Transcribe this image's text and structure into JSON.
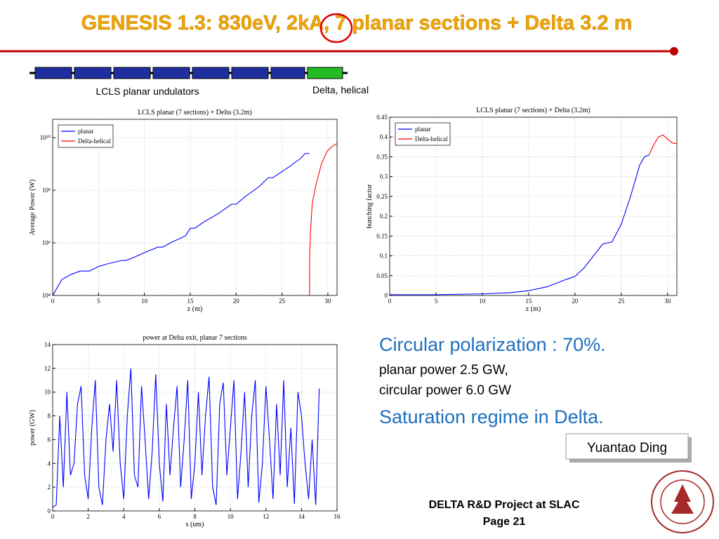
{
  "slide": {
    "title": "GENESIS 1.3: 830eV, 2kA, 7 planar sections + Delta 3.2 m",
    "undulator_label": "LCLS planar undulators",
    "delta_label": "Delta, helical",
    "bullets": [
      "Circular polarization : 70%.",
      "planar power 2.5 GW,",
      "circular power 6.0 GW",
      "Saturation regime in Delta."
    ],
    "author": "Yuantao Ding",
    "footer": "DELTA R&D Project at SLAC",
    "page": "Page 21"
  },
  "chart_data": [
    {
      "type": "line",
      "title": "LCLS planar (7 sections) + Delta (3.2m)",
      "xlabel": "z (m)",
      "ylabel": "Average Power (W)",
      "log_y": true,
      "grid": true,
      "legend": "upper left",
      "xlim": [
        0,
        31
      ],
      "xticks": [
        0,
        5,
        10,
        15,
        20,
        25,
        30
      ],
      "ylim": [
        10000,
        50000000000
      ],
      "yticks": [
        {
          "value": 10000,
          "label": "10⁴"
        },
        {
          "value": 1000000,
          "label": "10⁶"
        },
        {
          "value": 100000000,
          "label": "10⁸"
        },
        {
          "value": 10000000000,
          "label": "10¹⁰"
        }
      ],
      "series": [
        {
          "name": "planar",
          "color": "#0000ff",
          "x": [
            0,
            0.5,
            1,
            2,
            3,
            4,
            5,
            6,
            7.5,
            8,
            9,
            10,
            11.5,
            12,
            13,
            14.5,
            15,
            15.5,
            16.5,
            18,
            19.5,
            20,
            21,
            22.5,
            23.5,
            24,
            25.5,
            27,
            27.5,
            28
          ],
          "values": [
            10000,
            20000,
            40000,
            63000,
            85000,
            85000,
            126000,
            160000,
            214000,
            214000,
            295000,
            427000,
            692000,
            692000,
            1070000,
            1860000,
            3600000,
            3600000,
            6300000,
            12600000,
            29500000,
            29500000,
            58000000,
            138000000,
            300000000,
            300000000,
            670000000,
            1600000000,
            2500000000,
            2500000000
          ]
        },
        {
          "name": "Delta-helical",
          "color": "#ff0000",
          "x": [
            28,
            28.02,
            28.1,
            28.3,
            28.7,
            29.3,
            29.9,
            30.5,
            31
          ],
          "values": [
            10000,
            300000,
            2500000,
            32000000,
            160000000,
            1000000000,
            3000000000,
            4800000000,
            6000000000
          ]
        }
      ]
    },
    {
      "type": "line",
      "title": "LCLS planar (7 sections) + Delta (3.2m)",
      "xlabel": "z (m)",
      "ylabel": "bunching factor",
      "grid": true,
      "legend": "upper left",
      "xlim": [
        0,
        31
      ],
      "xticks": [
        0,
        5,
        10,
        15,
        20,
        25,
        30
      ],
      "ylim": [
        0,
        0.45
      ],
      "yticks": [
        0,
        0.05,
        0.1,
        0.15,
        0.2,
        0.25,
        0.3,
        0.35,
        0.4,
        0.45
      ],
      "series": [
        {
          "name": "planar",
          "color": "#0000ff",
          "x": [
            0,
            5,
            10,
            13,
            15,
            17,
            19,
            20,
            21,
            22,
            23,
            24,
            25,
            26,
            27,
            27.5,
            28
          ],
          "values": [
            0.002,
            0.002,
            0.004,
            0.007,
            0.012,
            0.022,
            0.04,
            0.048,
            0.07,
            0.1,
            0.13,
            0.135,
            0.18,
            0.25,
            0.33,
            0.35,
            0.355
          ]
        },
        {
          "name": "Delta-helical",
          "color": "#ff0000",
          "x": [
            28,
            28.5,
            29,
            29.5,
            30,
            30.5,
            31
          ],
          "values": [
            0.355,
            0.38,
            0.4,
            0.405,
            0.395,
            0.385,
            0.383
          ]
        }
      ]
    },
    {
      "type": "line",
      "title": "power at Delta exit, planar 7 sections",
      "xlabel": "s (um)",
      "ylabel": "power (GW)",
      "grid": true,
      "xlim": [
        0,
        16
      ],
      "xticks": [
        0,
        2,
        4,
        6,
        8,
        10,
        12,
        14,
        16
      ],
      "ylim": [
        0,
        14
      ],
      "yticks": [
        0,
        2,
        4,
        6,
        8,
        10,
        12,
        14
      ],
      "series": [
        {
          "color": "#0000ff",
          "x": [
            0,
            0.2,
            0.4,
            0.6,
            0.8,
            1,
            1.2,
            1.4,
            1.6,
            1.8,
            2,
            2.2,
            2.4,
            2.6,
            2.8,
            3,
            3.2,
            3.4,
            3.6,
            3.8,
            4,
            4.2,
            4.4,
            4.6,
            4.8,
            5,
            5.2,
            5.4,
            5.6,
            5.8,
            6,
            6.2,
            6.4,
            6.6,
            6.8,
            7,
            7.2,
            7.4,
            7.6,
            7.8,
            8,
            8.2,
            8.4,
            8.6,
            8.8,
            9,
            9.2,
            9.4,
            9.6,
            9.8,
            10,
            10.2,
            10.4,
            10.6,
            10.8,
            11,
            11.2,
            11.4,
            11.6,
            11.8,
            12,
            12.2,
            12.4,
            12.6,
            12.8,
            13,
            13.2,
            13.4,
            13.6,
            13.8,
            14,
            14.2,
            14.4,
            14.6,
            14.8,
            15
          ],
          "values": [
            0.3,
            0.5,
            8,
            2,
            10,
            3,
            4,
            9,
            10.5,
            3,
            1,
            7,
            11,
            2,
            0.5,
            6,
            9,
            5,
            11,
            4,
            1,
            8,
            12,
            3,
            2,
            10.5,
            6,
            1,
            5,
            11.5,
            4,
            0.8,
            9,
            3,
            7,
            10.5,
            2,
            6,
            11,
            1,
            4,
            10,
            3,
            8,
            11.3,
            2,
            0.5,
            9,
            10.8,
            3,
            7,
            11,
            1,
            5,
            10,
            2,
            8,
            11,
            0.7,
            4,
            10.5,
            6,
            1,
            9,
            3,
            11,
            2,
            7,
            0.6,
            10,
            8,
            4,
            1,
            6,
            0.5,
            10.3
          ]
        }
      ]
    }
  ]
}
